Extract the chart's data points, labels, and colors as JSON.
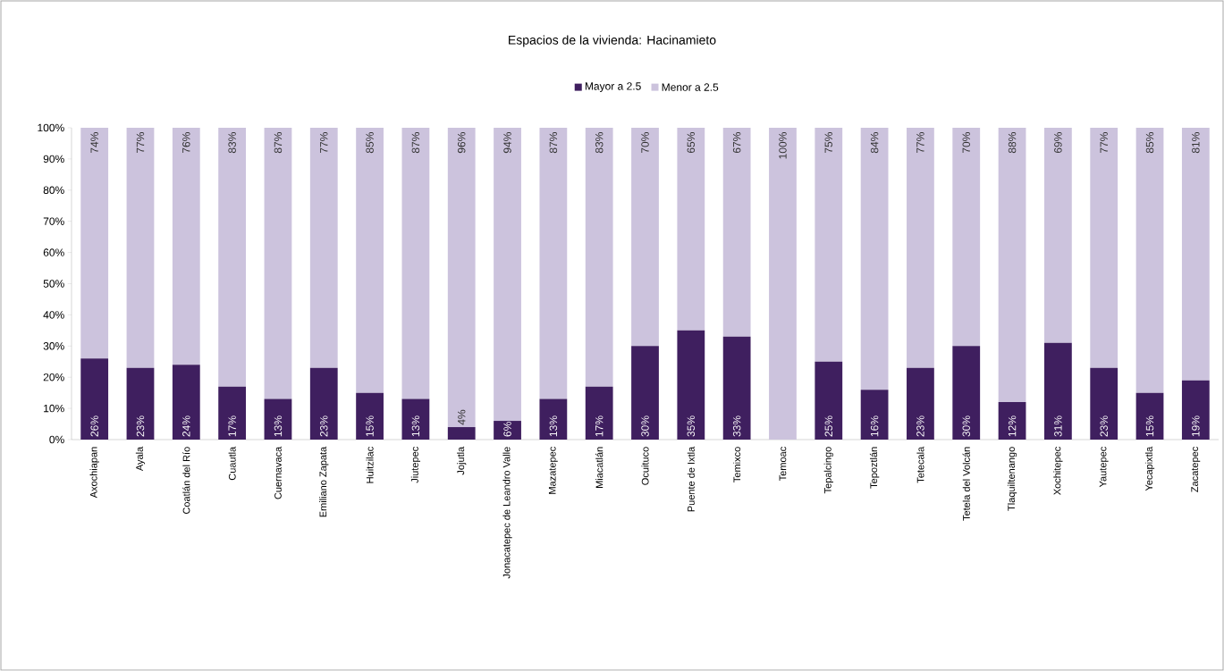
{
  "chart_data": {
    "type": "bar",
    "stacked": true,
    "title": "Espacios de la vivienda: Hacinamieto",
    "categories": [
      "Axochiapan",
      "Ayala",
      "Coatlán del Río",
      "Cuautla",
      "Cuernavaca",
      "Emiliano Zapata",
      "Huitzilac",
      "Jiutepec",
      "Jojutla",
      "Jonacatepec de Leandro Valle",
      "Mazatepec",
      "Miacatlán",
      "Ocuituco",
      "Puente de Ixtla",
      "Temixco",
      "Temoac",
      "Tepalcingo",
      "Tepoztlán",
      "Tetecala",
      "Tetela del Volcán",
      "Tlaquiltenango",
      "Xochitepec",
      "Yautepec",
      "Yecapixtla",
      "Zacatepec"
    ],
    "series": [
      {
        "name": "Mayor a 2.5",
        "color": "#3f1f5f",
        "values": [
          26,
          23,
          24,
          17,
          13,
          23,
          15,
          13,
          4,
          6,
          13,
          17,
          30,
          35,
          33,
          0,
          25,
          16,
          23,
          30,
          12,
          31,
          23,
          15,
          19
        ],
        "value_labels": [
          "26%",
          "23%",
          "24%",
          "17%",
          "13%",
          "23%",
          "15%",
          "13%",
          "4%",
          "6%",
          "13%",
          "17%",
          "30%",
          "35%",
          "33%",
          null,
          "25%",
          "16%",
          "23%",
          "30%",
          "12%",
          "31%",
          "23%",
          "15%",
          "19%"
        ]
      },
      {
        "name": "Menor a 2.5",
        "color": "#ccc3dd",
        "values": [
          74,
          77,
          76,
          83,
          87,
          77,
          85,
          87,
          96,
          94,
          87,
          83,
          70,
          65,
          67,
          100,
          75,
          84,
          77,
          70,
          88,
          69,
          77,
          85,
          81
        ],
        "value_labels": [
          "74%",
          "77%",
          "76%",
          "83%",
          "87%",
          "77%",
          "85%",
          "87%",
          "96%",
          "94%",
          "87%",
          "83%",
          "70%",
          "65%",
          "67%",
          "100%",
          "75%",
          "84%",
          "77%",
          "70%",
          "88%",
          "69%",
          "77%",
          "85%",
          "81%"
        ]
      }
    ],
    "ylim": [
      0,
      100
    ],
    "yticks": [
      {
        "value": 0,
        "label": "0%"
      },
      {
        "value": 10,
        "label": "10%"
      },
      {
        "value": 20,
        "label": "20%"
      },
      {
        "value": 30,
        "label": "30%"
      },
      {
        "value": 40,
        "label": "40%"
      },
      {
        "value": 50,
        "label": "50%"
      },
      {
        "value": 60,
        "label": "60%"
      },
      {
        "value": 70,
        "label": "70%"
      },
      {
        "value": 80,
        "label": "80%"
      },
      {
        "value": 90,
        "label": "90%"
      },
      {
        "value": 100,
        "label": "100%"
      }
    ],
    "grid": false,
    "legend": "top"
  }
}
